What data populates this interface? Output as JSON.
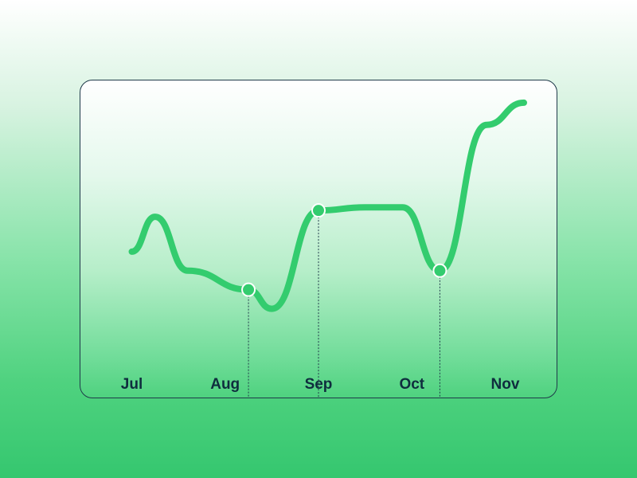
{
  "chart_data": {
    "type": "line",
    "categories": [
      "Jul",
      "Aug",
      "Sep",
      "Oct",
      "Nov"
    ],
    "x": [
      0,
      0.25,
      0.6,
      1.25,
      1.5,
      2.0,
      2.5,
      2.9,
      3.3,
      3.8,
      4.2
    ],
    "values": [
      46,
      57,
      40,
      34,
      28,
      59,
      60,
      60,
      40,
      86,
      93
    ],
    "highlighted_x": [
      1.25,
      2.0,
      3.3
    ],
    "xlim": [
      -0.55,
      4.55
    ],
    "ylim": [
      0,
      100
    ],
    "color": "#33cc6e",
    "grid": false
  }
}
